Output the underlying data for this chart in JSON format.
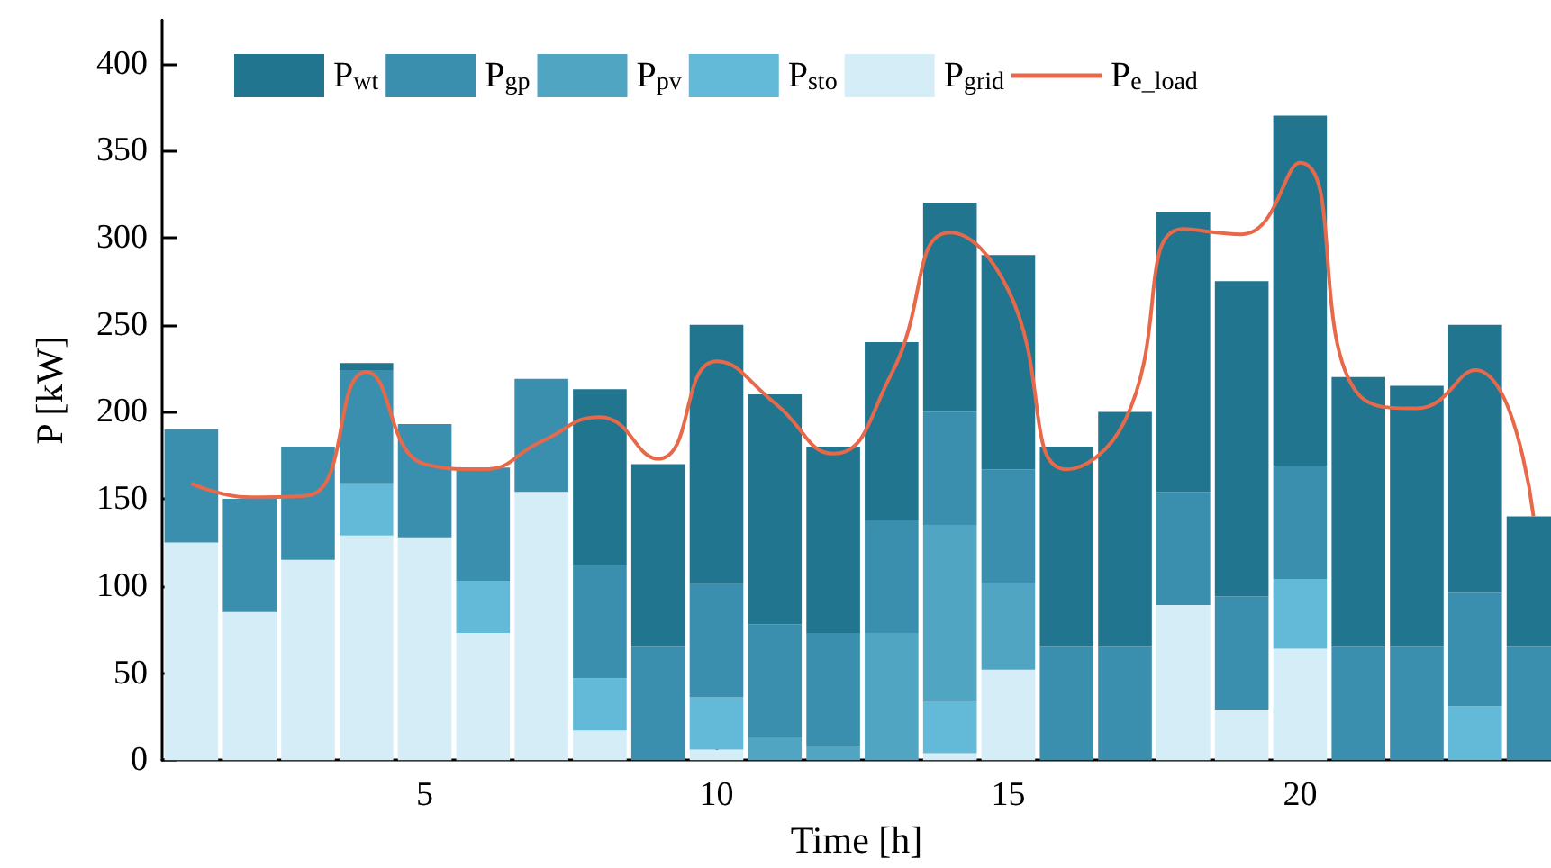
{
  "chart_data": {
    "type": "bar",
    "stacked": true,
    "xlabel": "Time [h]",
    "ylabel": "P [kW]",
    "x": [
      1,
      2,
      3,
      4,
      5,
      6,
      7,
      8,
      9,
      10,
      11,
      12,
      13,
      14,
      15,
      16,
      17,
      18,
      19,
      20,
      21,
      22,
      23,
      24
    ],
    "xlim": [
      0.5,
      24.3
    ],
    "xticks": [
      5,
      10,
      15,
      20
    ],
    "ylim": [
      0,
      425
    ],
    "yticks": [
      0,
      50,
      100,
      150,
      200,
      250,
      300,
      350,
      400
    ],
    "grid": false,
    "legend": "top left",
    "marker": "none",
    "line_style": "solid",
    "series": [
      {
        "name": "P$_{grid}$",
        "color": "#d5edf6",
        "values": [
          125,
          85,
          115,
          129,
          128,
          73,
          154,
          17,
          0,
          6,
          0,
          0,
          0,
          4,
          52,
          0,
          0,
          89,
          29,
          64,
          0,
          0,
          0,
          0
        ]
      },
      {
        "name": "P$_{sto}$",
        "color": "#62bad8",
        "values": [
          0,
          0,
          0,
          30,
          0,
          30,
          0,
          30,
          0,
          30,
          0,
          0,
          0,
          30,
          0,
          0,
          0,
          0,
          0,
          40,
          0,
          0,
          31,
          0
        ]
      },
      {
        "name": "P$_{pv}$",
        "color": "#4fa5c2",
        "values": [
          0,
          0,
          0,
          0,
          0,
          0,
          0,
          0,
          0,
          0,
          13,
          8,
          73,
          101,
          50,
          0,
          0,
          0,
          0,
          0,
          0,
          0,
          0,
          0
        ]
      },
      {
        "name": "P$_{gp}$",
        "color": "#3b8fae",
        "values": [
          65,
          65,
          65,
          65,
          65,
          65,
          65,
          65,
          65,
          65,
          65,
          65,
          65,
          65,
          65,
          65,
          65,
          65,
          65,
          65,
          65,
          65,
          65,
          65
        ]
      },
      {
        "name": "P$_{wt}$",
        "color": "#21758f",
        "values": [
          0,
          0,
          0,
          4,
          0,
          0,
          0,
          101,
          105,
          149,
          132,
          107,
          102,
          120,
          123,
          115,
          135,
          161,
          181,
          201,
          155,
          150,
          154,
          75
        ]
      },
      {
        "name": "P$_{e_load}$",
        "type": "line",
        "color": "#e8694a",
        "values": [
          159,
          151,
          152,
          223,
          170,
          167,
          183,
          197,
          173,
          229,
          205,
          176,
          222,
          303,
          270,
          167,
          195,
          305,
          302,
          343,
          210,
          202,
          224,
          140
        ]
      }
    ]
  }
}
